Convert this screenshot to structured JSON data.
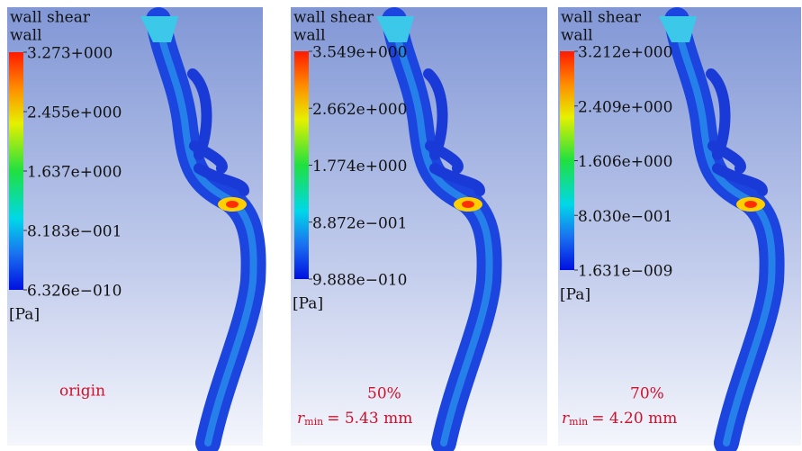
{
  "panels": [
    {
      "title": [
        "wall shear",
        "wall"
      ],
      "legend": [
        "3.273+000",
        "2.455e+000",
        "1.637e+000",
        "8.183e−001",
        "6.326e−010"
      ],
      "unit": "[Pa]",
      "annotation": {
        "text": "origin"
      }
    },
    {
      "title": [
        "wall shear",
        "wall"
      ],
      "legend": [
        "3.549e+000",
        "2.662e+000",
        "1.774e+000",
        "8.872e−001",
        "9.888e−010"
      ],
      "unit": "[Pa]",
      "annotation": {
        "text": "50%",
        "symbol": "r",
        "subscript": "min",
        "formula": "= 5.43 mm"
      }
    },
    {
      "title": [
        "wall shear",
        "wall"
      ],
      "legend": [
        "3.212e+000",
        "2.409e+000",
        "1.606e+000",
        "8.030e−001",
        "1.631e−009"
      ],
      "unit": "[Pa]",
      "annotation": {
        "text": "70%",
        "symbol": "r",
        "subscript": "min",
        "formula": "= 4.20 mm"
      }
    }
  ]
}
